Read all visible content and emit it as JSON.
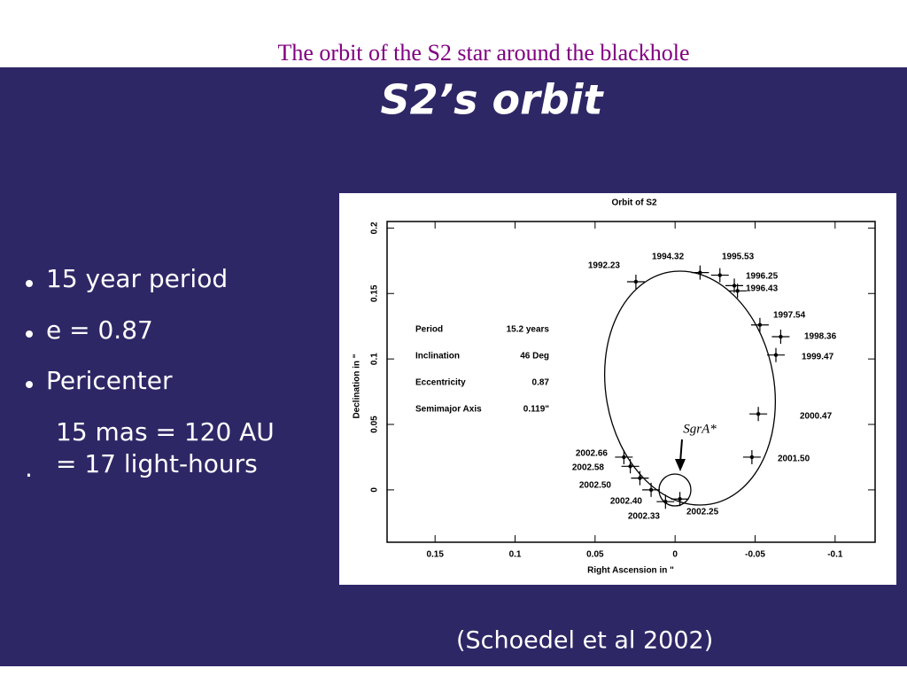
{
  "header": {
    "title": "The orbit of the S2 star around  the blackhole"
  },
  "slide": {
    "title": "S2’s orbit",
    "bullets": [
      "15 year period",
      "e = 0.87",
      "Pericenter"
    ],
    "pericenter_lines": [
      "15 mas = 120 AU",
      "= 17 light-hours"
    ],
    "stray_mark": ".",
    "citation": "(Schoedel et al 2002)"
  },
  "chart_data": {
    "type": "scatter",
    "title": "Orbit of S2",
    "x_label": "Right Ascension in \"",
    "y_label": "Declination in \"",
    "x": [
      0.0245,
      -0.0156,
      -0.028,
      -0.037,
      -0.039,
      -0.053,
      -0.066,
      -0.063,
      -0.052,
      -0.048,
      -0.003,
      0.006,
      0.015,
      0.022,
      0.028,
      0.032
    ],
    "values": [
      0.159,
      0.166,
      0.164,
      0.156,
      0.152,
      0.126,
      0.117,
      0.103,
      0.058,
      0.025,
      -0.007,
      -0.009,
      0.0,
      0.009,
      0.018,
      0.025
    ],
    "labels": [
      "1992.23",
      "1994.32",
      "1995.53",
      "1996.25",
      "1996.43",
      "1997.54",
      "1998.36",
      "1999.47",
      "2000.47",
      "2001.50",
      "2002.25",
      "2002.33",
      "2002.40",
      "2002.50",
      "2002.58",
      "2002.66"
    ],
    "color": "#000000",
    "xlim": [
      0.18,
      -0.125
    ],
    "ylim": [
      -0.04,
      0.205
    ],
    "xticks": [
      0.15,
      0.1,
      0.05,
      0,
      -0.05,
      -0.1
    ],
    "yticks": [
      0,
      0.05,
      0.1,
      0.15,
      0.2
    ],
    "annotation": "SgrA*",
    "parameters": [
      [
        "Period",
        "15.2 years"
      ],
      [
        "Inclination",
        "46 Deg"
      ],
      [
        "Eccentricity",
        "0.87"
      ],
      [
        "Semimajor Axis",
        "0.119\""
      ]
    ]
  }
}
